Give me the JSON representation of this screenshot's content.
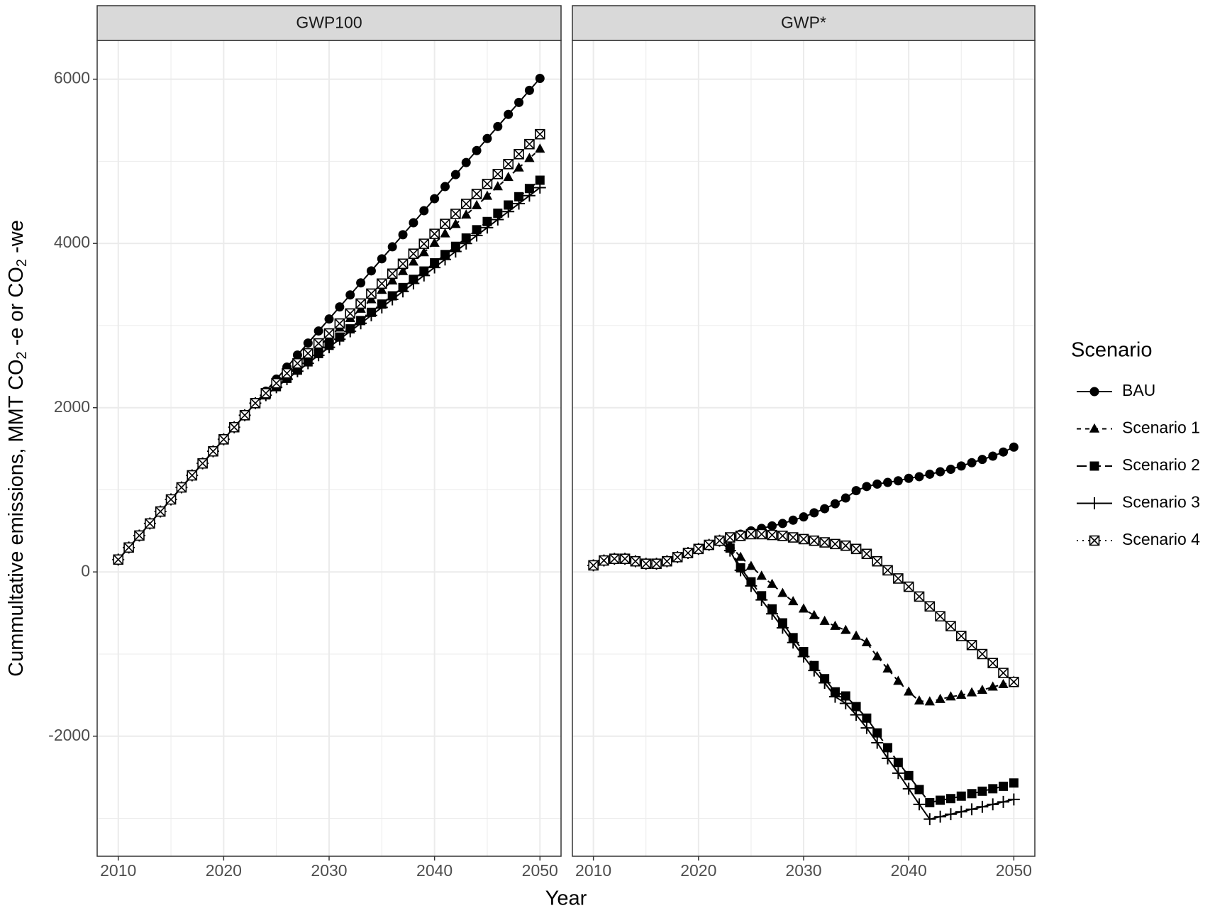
{
  "chart_data": [
    {
      "type": "line",
      "title": "GWP100",
      "x": [
        2010,
        2011,
        2012,
        2013,
        2014,
        2015,
        2016,
        2017,
        2018,
        2019,
        2020,
        2021,
        2022,
        2023,
        2024,
        2025,
        2026,
        2027,
        2028,
        2029,
        2030,
        2031,
        2032,
        2033,
        2034,
        2035,
        2036,
        2037,
        2038,
        2039,
        2040,
        2041,
        2042,
        2043,
        2044,
        2045,
        2046,
        2047,
        2048,
        2049,
        2050
      ],
      "series": [
        {
          "name": "BAU",
          "color": "#000000",
          "marker": "circle",
          "linestyle": "solid",
          "values": [
            150,
            297,
            443,
            590,
            736,
            883,
            1029,
            1176,
            1322,
            1469,
            1615,
            1762,
            1908,
            2055,
            2201,
            2348,
            2494,
            2641,
            2787,
            2934,
            3080,
            3227,
            3373,
            3520,
            3666,
            3813,
            3959,
            4106,
            4252,
            4399,
            4545,
            4692,
            4838,
            4985,
            5131,
            5278,
            5424,
            5571,
            5717,
            5864,
            6010
          ]
        },
        {
          "name": "Scenario 1",
          "color": "#000000",
          "marker": "triangle",
          "linestyle": "dashed",
          "values": [
            150,
            297,
            443,
            590,
            736,
            883,
            1029,
            1176,
            1322,
            1469,
            1615,
            1762,
            1908,
            2055,
            2170,
            2284,
            2399,
            2514,
            2628,
            2743,
            2858,
            2972,
            3087,
            3201,
            3316,
            3431,
            3545,
            3660,
            3775,
            3889,
            4004,
            4119,
            4233,
            4348,
            4462,
            4577,
            4692,
            4806,
            4921,
            5036,
            5150
          ]
        },
        {
          "name": "Scenario 2",
          "color": "#000000",
          "marker": "square",
          "linestyle": "longdash",
          "values": [
            150,
            297,
            443,
            590,
            736,
            883,
            1029,
            1176,
            1322,
            1469,
            1615,
            1762,
            1908,
            2055,
            2156,
            2256,
            2357,
            2457,
            2558,
            2659,
            2759,
            2860,
            2960,
            3061,
            3161,
            3262,
            3362,
            3463,
            3563,
            3664,
            3764,
            3865,
            3965,
            4066,
            4167,
            4267,
            4368,
            4468,
            4569,
            4669,
            4770
          ]
        },
        {
          "name": "Scenario 3",
          "color": "#000000",
          "marker": "plus",
          "linestyle": "solid",
          "values": [
            150,
            297,
            443,
            590,
            736,
            883,
            1029,
            1176,
            1322,
            1469,
            1615,
            1762,
            1908,
            2055,
            2152,
            2249,
            2347,
            2444,
            2541,
            2638,
            2735,
            2833,
            2930,
            3027,
            3124,
            3221,
            3319,
            3416,
            3513,
            3610,
            3707,
            3805,
            3902,
            3999,
            4096,
            4193,
            4291,
            4388,
            4485,
            4582,
            4680
          ]
        },
        {
          "name": "Scenario 4",
          "color": "#000000",
          "marker": "boxcross",
          "linestyle": "dotted",
          "values": [
            150,
            297,
            443,
            590,
            736,
            883,
            1029,
            1176,
            1322,
            1469,
            1615,
            1762,
            1908,
            2055,
            2176,
            2298,
            2419,
            2540,
            2662,
            2783,
            2904,
            3025,
            3147,
            3268,
            3389,
            3511,
            3632,
            3753,
            3875,
            3996,
            4117,
            4238,
            4360,
            4481,
            4602,
            4724,
            4845,
            4966,
            5087,
            5209,
            5330
          ]
        }
      ],
      "xlim": [
        2008,
        2052
      ],
      "xticks": [
        2010,
        2020,
        2030,
        2040,
        2050
      ],
      "x_minor_ticks": [
        2015,
        2025,
        2035,
        2045
      ],
      "ylim": [
        -3462,
        6472
      ],
      "yticks": [
        -2000,
        0,
        2000,
        4000,
        6000
      ],
      "y_minor_ticks": [
        -3000,
        -1000,
        1000,
        3000,
        5000
      ],
      "grid": true
    },
    {
      "type": "line",
      "title": "GWP*",
      "x": [
        2010,
        2011,
        2012,
        2013,
        2014,
        2015,
        2016,
        2017,
        2018,
        2019,
        2020,
        2021,
        2022,
        2023,
        2024,
        2025,
        2026,
        2027,
        2028,
        2029,
        2030,
        2031,
        2032,
        2033,
        2034,
        2035,
        2036,
        2037,
        2038,
        2039,
        2040,
        2041,
        2042,
        2043,
        2044,
        2045,
        2046,
        2047,
        2048,
        2049,
        2050
      ],
      "series": [
        {
          "name": "BAU",
          "color": "#000000",
          "marker": "circle",
          "linestyle": "solid",
          "values": [
            80,
            140,
            160,
            160,
            130,
            100,
            100,
            130,
            180,
            230,
            280,
            330,
            380,
            420,
            460,
            500,
            530,
            560,
            590,
            630,
            670,
            720,
            770,
            830,
            900,
            990,
            1040,
            1070,
            1090,
            1110,
            1140,
            1160,
            1190,
            1220,
            1250,
            1290,
            1330,
            1370,
            1410,
            1460,
            1520
          ]
        },
        {
          "name": "Scenario 1",
          "color": "#000000",
          "marker": "triangle",
          "linestyle": "dashed",
          "values": [
            80,
            140,
            160,
            160,
            130,
            100,
            100,
            130,
            180,
            230,
            280,
            330,
            380,
            330,
            180,
            70,
            -50,
            -150,
            -260,
            -360,
            -450,
            -530,
            -600,
            -660,
            -710,
            -780,
            -860,
            -1030,
            -1180,
            -1330,
            -1460,
            -1570,
            -1580,
            -1550,
            -1520,
            -1500,
            -1470,
            -1440,
            -1400,
            -1370,
            -1330
          ]
        },
        {
          "name": "Scenario 2",
          "color": "#000000",
          "marker": "square",
          "linestyle": "longdash",
          "values": [
            80,
            140,
            160,
            160,
            130,
            100,
            100,
            130,
            180,
            230,
            280,
            330,
            380,
            290,
            50,
            -120,
            -290,
            -450,
            -620,
            -800,
            -970,
            -1140,
            -1300,
            -1460,
            -1510,
            -1640,
            -1780,
            -1960,
            -2140,
            -2320,
            -2480,
            -2650,
            -2810,
            -2780,
            -2760,
            -2730,
            -2700,
            -2670,
            -2640,
            -2610,
            -2570
          ]
        },
        {
          "name": "Scenario 3",
          "color": "#000000",
          "marker": "plus",
          "linestyle": "solid",
          "values": [
            80,
            140,
            160,
            160,
            130,
            100,
            100,
            130,
            180,
            230,
            280,
            330,
            380,
            260,
            20,
            -170,
            -340,
            -510,
            -680,
            -860,
            -1030,
            -1200,
            -1350,
            -1520,
            -1600,
            -1740,
            -1900,
            -2080,
            -2270,
            -2450,
            -2640,
            -2830,
            -3010,
            -2980,
            -2950,
            -2920,
            -2890,
            -2860,
            -2830,
            -2800,
            -2770
          ]
        },
        {
          "name": "Scenario 4",
          "color": "#000000",
          "marker": "boxcross",
          "linestyle": "dotted",
          "values": [
            80,
            140,
            160,
            160,
            130,
            100,
            100,
            130,
            180,
            230,
            280,
            330,
            380,
            420,
            440,
            460,
            460,
            450,
            440,
            420,
            400,
            380,
            360,
            340,
            320,
            280,
            220,
            130,
            20,
            -80,
            -180,
            -300,
            -420,
            -540,
            -660,
            -780,
            -890,
            -1000,
            -1110,
            -1230,
            -1340
          ]
        }
      ],
      "xlim": [
        2008,
        2052
      ],
      "xticks": [
        2010,
        2020,
        2030,
        2040,
        2050
      ],
      "x_minor_ticks": [
        2015,
        2025,
        2035,
        2045
      ],
      "ylim": [
        -3462,
        6472
      ],
      "yticks": [
        -2000,
        0,
        2000,
        4000,
        6000
      ],
      "y_minor_ticks": [
        -3000,
        -1000,
        1000,
        3000,
        5000
      ],
      "grid": true
    }
  ],
  "x_label": "Year",
  "y_label": [
    "Cummultative emissions, MMT  CO",
    "2",
    " -e  or  CO",
    "2",
    " -we"
  ],
  "legend": {
    "title": "Scenario",
    "position": "right"
  }
}
